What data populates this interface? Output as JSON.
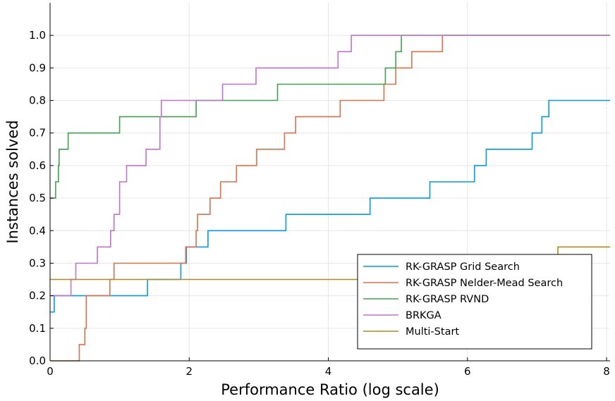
{
  "chart_data": {
    "type": "line",
    "step": true,
    "title": "",
    "xlabel": "Performance Ratio (log scale)",
    "ylabel": "Instances solved",
    "xlim": [
      0,
      8.05
    ],
    "ylim": [
      0,
      1.1
    ],
    "xticks": [
      0,
      2,
      4,
      6,
      8
    ],
    "xtick_labels": [
      "0",
      "2",
      "4",
      "6",
      "8"
    ],
    "yticks": [
      0.0,
      0.1,
      0.2,
      0.3,
      0.4,
      0.5,
      0.6,
      0.7,
      0.8,
      0.9,
      1.0
    ],
    "ytick_labels": [
      "0.0",
      "0.1",
      "0.2",
      "0.3",
      "0.4",
      "0.5",
      "0.6",
      "0.7",
      "0.8",
      "0.9",
      "1.0"
    ],
    "grid": true,
    "legend_position": "bottom-right",
    "series": [
      {
        "name": "RK-GRASP Grid Search",
        "color": "#009af9",
        "points": [
          [
            0,
            0.15
          ],
          [
            0.06,
            0.15
          ],
          [
            0.06,
            0.2
          ],
          [
            1.4,
            0.2
          ],
          [
            1.4,
            0.25
          ],
          [
            1.88,
            0.25
          ],
          [
            1.88,
            0.3
          ],
          [
            1.96,
            0.3
          ],
          [
            1.96,
            0.35
          ],
          [
            2.27,
            0.35
          ],
          [
            2.27,
            0.4
          ],
          [
            3.39,
            0.4
          ],
          [
            3.39,
            0.45
          ],
          [
            4.6,
            0.45
          ],
          [
            4.6,
            0.5
          ],
          [
            5.46,
            0.5
          ],
          [
            5.46,
            0.55
          ],
          [
            6.1,
            0.55
          ],
          [
            6.1,
            0.6
          ],
          [
            6.27,
            0.6
          ],
          [
            6.27,
            0.65
          ],
          [
            6.93,
            0.65
          ],
          [
            6.93,
            0.7
          ],
          [
            7.07,
            0.7
          ],
          [
            7.07,
            0.75
          ],
          [
            7.17,
            0.75
          ],
          [
            7.17,
            0.8
          ],
          [
            8.05,
            0.8
          ]
        ]
      },
      {
        "name": "RK-GRASP Nelder-Mead Search",
        "color": "#e26f46",
        "points": [
          [
            0,
            0.0
          ],
          [
            0.42,
            0.0
          ],
          [
            0.42,
            0.05
          ],
          [
            0.5,
            0.05
          ],
          [
            0.5,
            0.1
          ],
          [
            0.52,
            0.1
          ],
          [
            0.52,
            0.2
          ],
          [
            0.86,
            0.2
          ],
          [
            0.86,
            0.25
          ],
          [
            0.92,
            0.25
          ],
          [
            0.92,
            0.3
          ],
          [
            1.95,
            0.3
          ],
          [
            1.95,
            0.35
          ],
          [
            2.1,
            0.35
          ],
          [
            2.1,
            0.4
          ],
          [
            2.12,
            0.4
          ],
          [
            2.12,
            0.45
          ],
          [
            2.3,
            0.45
          ],
          [
            2.3,
            0.5
          ],
          [
            2.45,
            0.5
          ],
          [
            2.45,
            0.55
          ],
          [
            2.68,
            0.55
          ],
          [
            2.68,
            0.6
          ],
          [
            2.97,
            0.6
          ],
          [
            2.97,
            0.65
          ],
          [
            3.37,
            0.65
          ],
          [
            3.37,
            0.7
          ],
          [
            3.53,
            0.7
          ],
          [
            3.53,
            0.75
          ],
          [
            4.17,
            0.75
          ],
          [
            4.17,
            0.8
          ],
          [
            4.8,
            0.8
          ],
          [
            4.8,
            0.85
          ],
          [
            4.97,
            0.85
          ],
          [
            4.97,
            0.9
          ],
          [
            5.2,
            0.9
          ],
          [
            5.2,
            0.95
          ],
          [
            5.64,
            0.95
          ],
          [
            5.64,
            1.0
          ],
          [
            8.05,
            1.0
          ]
        ]
      },
      {
        "name": "RK-GRASP RVND",
        "color": "#3da44d",
        "points": [
          [
            0,
            0.5
          ],
          [
            0.08,
            0.5
          ],
          [
            0.08,
            0.55
          ],
          [
            0.12,
            0.55
          ],
          [
            0.12,
            0.6
          ],
          [
            0.13,
            0.6
          ],
          [
            0.13,
            0.65
          ],
          [
            0.26,
            0.65
          ],
          [
            0.26,
            0.7
          ],
          [
            1.0,
            0.7
          ],
          [
            1.0,
            0.75
          ],
          [
            2.1,
            0.75
          ],
          [
            2.1,
            0.8
          ],
          [
            3.27,
            0.8
          ],
          [
            3.27,
            0.85
          ],
          [
            4.82,
            0.85
          ],
          [
            4.82,
            0.9
          ],
          [
            4.97,
            0.9
          ],
          [
            4.97,
            0.95
          ],
          [
            5.05,
            0.95
          ],
          [
            5.05,
            1.0
          ],
          [
            8.05,
            1.0
          ]
        ]
      },
      {
        "name": "BRKGA",
        "color": "#c271d2",
        "points": [
          [
            0,
            0.2
          ],
          [
            0.3,
            0.2
          ],
          [
            0.3,
            0.25
          ],
          [
            0.37,
            0.25
          ],
          [
            0.37,
            0.3
          ],
          [
            0.68,
            0.3
          ],
          [
            0.68,
            0.35
          ],
          [
            0.87,
            0.35
          ],
          [
            0.87,
            0.4
          ],
          [
            0.92,
            0.4
          ],
          [
            0.92,
            0.45
          ],
          [
            1.0,
            0.45
          ],
          [
            1.0,
            0.55
          ],
          [
            1.1,
            0.55
          ],
          [
            1.1,
            0.6
          ],
          [
            1.38,
            0.6
          ],
          [
            1.38,
            0.65
          ],
          [
            1.58,
            0.65
          ],
          [
            1.58,
            0.75
          ],
          [
            1.6,
            0.75
          ],
          [
            1.6,
            0.8
          ],
          [
            2.48,
            0.8
          ],
          [
            2.48,
            0.85
          ],
          [
            2.96,
            0.85
          ],
          [
            2.96,
            0.9
          ],
          [
            4.14,
            0.9
          ],
          [
            4.14,
            0.95
          ],
          [
            4.33,
            0.95
          ],
          [
            4.33,
            1.0
          ],
          [
            8.05,
            1.0
          ]
        ]
      },
      {
        "name": "Multi-Start",
        "color": "#ac8d18",
        "points": [
          [
            0,
            0.25
          ],
          [
            7.3,
            0.25
          ],
          [
            7.3,
            0.35
          ],
          [
            8.05,
            0.35
          ]
        ]
      }
    ]
  }
}
